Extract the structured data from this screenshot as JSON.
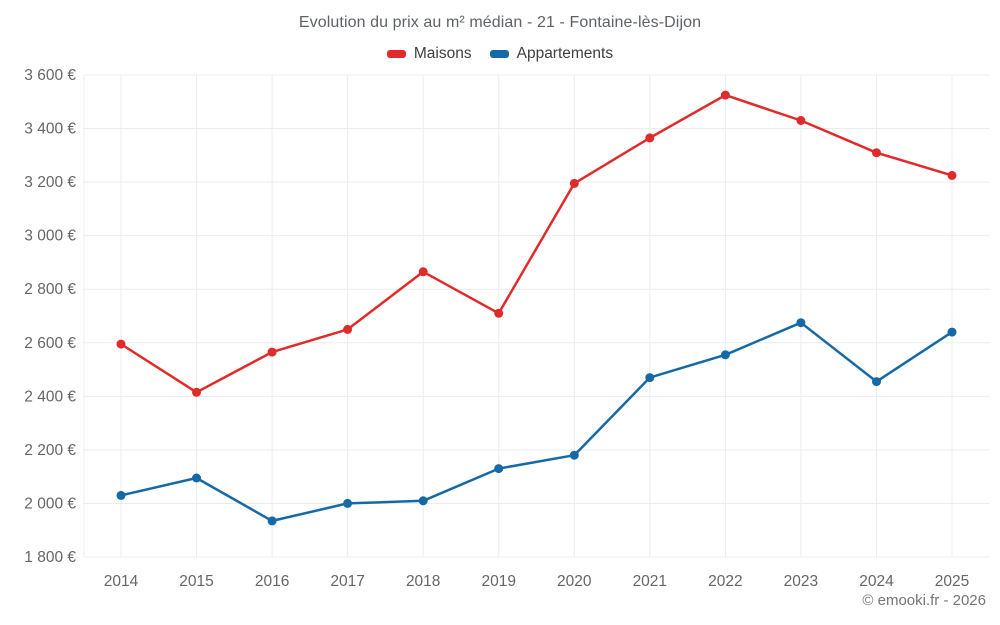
{
  "title": "Evolution du prix au m² médian - 21 - Fontaine-lès-Dijon",
  "attribution": "© emooki.fr - 2026",
  "colors": {
    "maisons": "#e02b2b",
    "appartements": "#1569a6",
    "grid": "#ececec",
    "tick_text": "#666666",
    "title_text": "#5f6368",
    "legend_text": "#3f3f3f",
    "attribution_text": "#757575"
  },
  "chart_data": {
    "type": "line",
    "title": "Evolution du prix au m² médian - 21 - Fontaine-lès-Dijon",
    "x": [
      2014,
      2015,
      2016,
      2017,
      2018,
      2019,
      2020,
      2021,
      2022,
      2023,
      2024,
      2025
    ],
    "x_labels": [
      "2014",
      "2015",
      "2016",
      "2017",
      "2018",
      "2019",
      "2020",
      "2021",
      "2022",
      "2023",
      "2024",
      "2025"
    ],
    "series": [
      {
        "name": "Maisons",
        "color": "#e02b2b",
        "values": [
          2595,
          2415,
          2565,
          2650,
          2865,
          2710,
          3195,
          3365,
          3525,
          3430,
          3310,
          3225
        ]
      },
      {
        "name": "Appartements",
        "color": "#1569a6",
        "values": [
          2030,
          2095,
          1935,
          2000,
          2010,
          2130,
          2180,
          2470,
          2555,
          2675,
          2455,
          2640
        ]
      }
    ],
    "xlabel": "",
    "ylabel": "",
    "ylim": [
      1800,
      3600
    ],
    "ytick_step": 200,
    "yticks": [
      1800,
      2000,
      2200,
      2400,
      2600,
      2800,
      3000,
      3200,
      3400,
      3600
    ],
    "ytick_labels": [
      "1 800 €",
      "2 000 €",
      "2 200 €",
      "2 400 €",
      "2 600 €",
      "2 800 €",
      "3 000 €",
      "3 200 €",
      "3 400 €",
      "3 600 €"
    ],
    "grid": true,
    "legend_position": "top",
    "currency": "€"
  }
}
